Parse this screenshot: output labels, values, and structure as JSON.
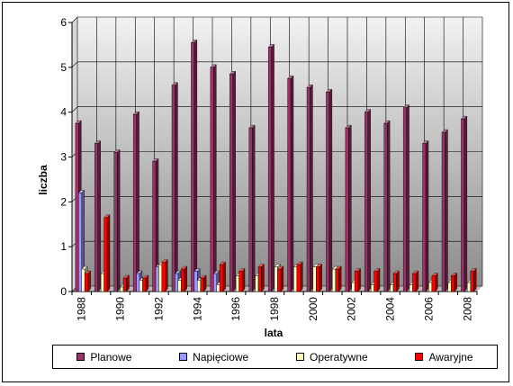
{
  "chart_data": {
    "type": "bar",
    "title": "",
    "xlabel": "lata",
    "ylabel": "liczba",
    "ylim": [
      0,
      6
    ],
    "yticks": [
      "0",
      "1",
      "2",
      "3",
      "4",
      "5",
      "6"
    ],
    "categories": [
      "1988",
      "1989",
      "1990",
      "1991",
      "1992",
      "1993",
      "1994",
      "1995",
      "1996",
      "1997",
      "1998",
      "1999",
      "2000",
      "2001",
      "2002",
      "2003",
      "2004",
      "2005",
      "2006",
      "2007",
      "2008"
    ],
    "x_tick_labels": [
      "1988",
      "1990",
      "1992",
      "1994",
      "1996",
      "1998",
      "2000",
      "2002",
      "2004",
      "2006",
      "2008"
    ],
    "grid": true,
    "legend_position": "bottom",
    "series": [
      {
        "name": "Planowe",
        "color": "#993366",
        "values": [
          3.75,
          3.3,
          3.1,
          3.95,
          2.9,
          4.6,
          5.55,
          5.0,
          4.85,
          3.65,
          5.45,
          4.75,
          4.55,
          4.45,
          3.65,
          4.0,
          3.75,
          4.1,
          3.3,
          3.55,
          3.85
        ]
      },
      {
        "name": "Napięciowe",
        "color": "#9999ff",
        "values": [
          2.2,
          0,
          0,
          0.4,
          0.55,
          0.4,
          0.45,
          0.4,
          0,
          0,
          0,
          0,
          0,
          0,
          0,
          0,
          0,
          0,
          0,
          0,
          0
        ]
      },
      {
        "name": "Operatywne",
        "color": "#ffffc0",
        "values": [
          0.5,
          0.4,
          0.1,
          0.25,
          0.6,
          0.25,
          0.25,
          0.15,
          0.35,
          0.35,
          0.55,
          0.55,
          0.55,
          0.5,
          0.2,
          0.15,
          0.15,
          0.15,
          0.2,
          0.2,
          0.2
        ]
      },
      {
        "name": "Awaryjne",
        "color": "#ff0000",
        "values": [
          0.4,
          1.65,
          0.3,
          0.3,
          0.65,
          0.5,
          0.3,
          0.6,
          0.45,
          0.55,
          0.5,
          0.6,
          0.55,
          0.5,
          0.45,
          0.45,
          0.4,
          0.4,
          0.35,
          0.35,
          0.45
        ]
      }
    ]
  }
}
